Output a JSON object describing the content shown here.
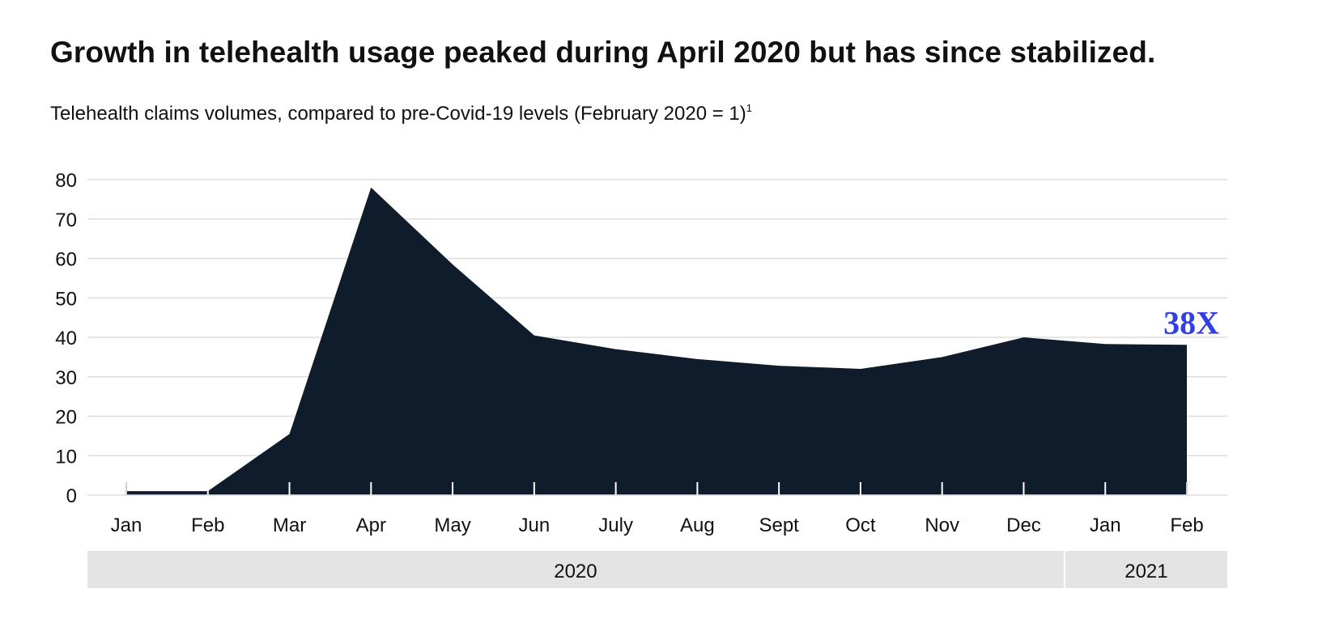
{
  "chart_data": {
    "type": "area",
    "title": "Growth in telehealth usage peaked during April 2020 but has since stabilized.",
    "subtitle": "Telehealth claims volumes, compared to pre-Covid-19 levels (February 2020 = 1)",
    "subtitle_footnote": "1",
    "categories": [
      "Jan",
      "Feb",
      "Mar",
      "Apr",
      "May",
      "Jun",
      "July",
      "Aug",
      "Sept",
      "Oct",
      "Nov",
      "Dec",
      "Jan",
      "Feb"
    ],
    "values": [
      1,
      1,
      15.5,
      78,
      58.5,
      40.5,
      37,
      34.5,
      32.8,
      32,
      35,
      40,
      38.3,
      38.1
    ],
    "year_groups": [
      {
        "label": "2020",
        "count": 12
      },
      {
        "label": "2021",
        "count": 2
      }
    ],
    "yticks": [
      "0",
      "10",
      "20",
      "30",
      "40",
      "50",
      "60",
      "70",
      "80"
    ],
    "ylim": [
      0,
      80
    ],
    "grid": true,
    "annotation": {
      "text": "38X",
      "point_index": 13
    },
    "colors": {
      "area": "#0e1c2c",
      "grid": "#dddddd",
      "band": "#e4e4e4",
      "annotation": "#2f3fe0"
    }
  }
}
